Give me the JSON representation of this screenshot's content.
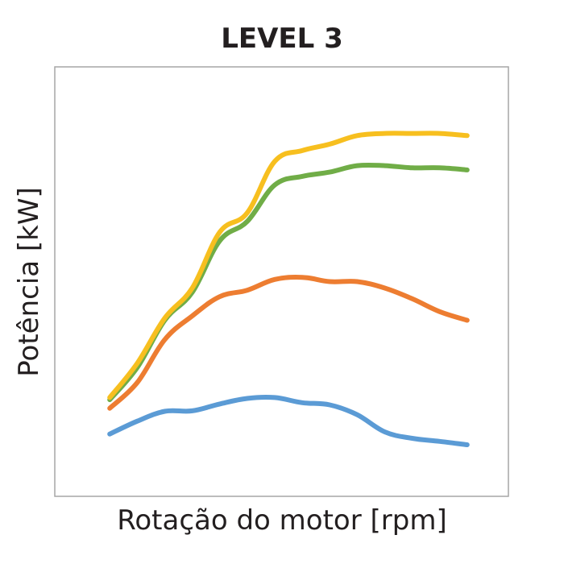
{
  "chart_data": {
    "type": "line",
    "title": "LEVEL 3",
    "xlabel": "Rotação do motor [rpm]",
    "ylabel": "Potência [kW]",
    "x": [
      1,
      2,
      3,
      4,
      5,
      6,
      7,
      8,
      9,
      10,
      11,
      12,
      13,
      14
    ],
    "xlim": [
      -1,
      15.5
    ],
    "ylim": [
      0,
      100
    ],
    "grid": false,
    "legend": "none",
    "series": [
      {
        "color": "#5b9bd5",
        "values": [
          14.5,
          17.5,
          19.8,
          19.9,
          21.5,
          22.8,
          23.0,
          21.8,
          21.3,
          19.0,
          15.0,
          13.5,
          12.8,
          12.0
        ]
      },
      {
        "color": "#ed7d31",
        "values": [
          20.5,
          26.5,
          36.5,
          42.0,
          46.5,
          48.0,
          50.5,
          51.0,
          50.0,
          50.0,
          48.5,
          46.0,
          43.0,
          41.0
        ]
      },
      {
        "color": "#70ad47",
        "values": [
          22.5,
          30.0,
          41.0,
          47.5,
          59.5,
          64.0,
          72.5,
          74.5,
          75.5,
          77.0,
          77.0,
          76.5,
          76.5,
          76.0
        ]
      },
      {
        "color": "#f7bf1f",
        "values": [
          23.0,
          31.0,
          41.5,
          48.5,
          61.5,
          66.0,
          78.0,
          80.5,
          82.0,
          84.0,
          84.5,
          84.5,
          84.5,
          84.0
        ]
      }
    ]
  }
}
